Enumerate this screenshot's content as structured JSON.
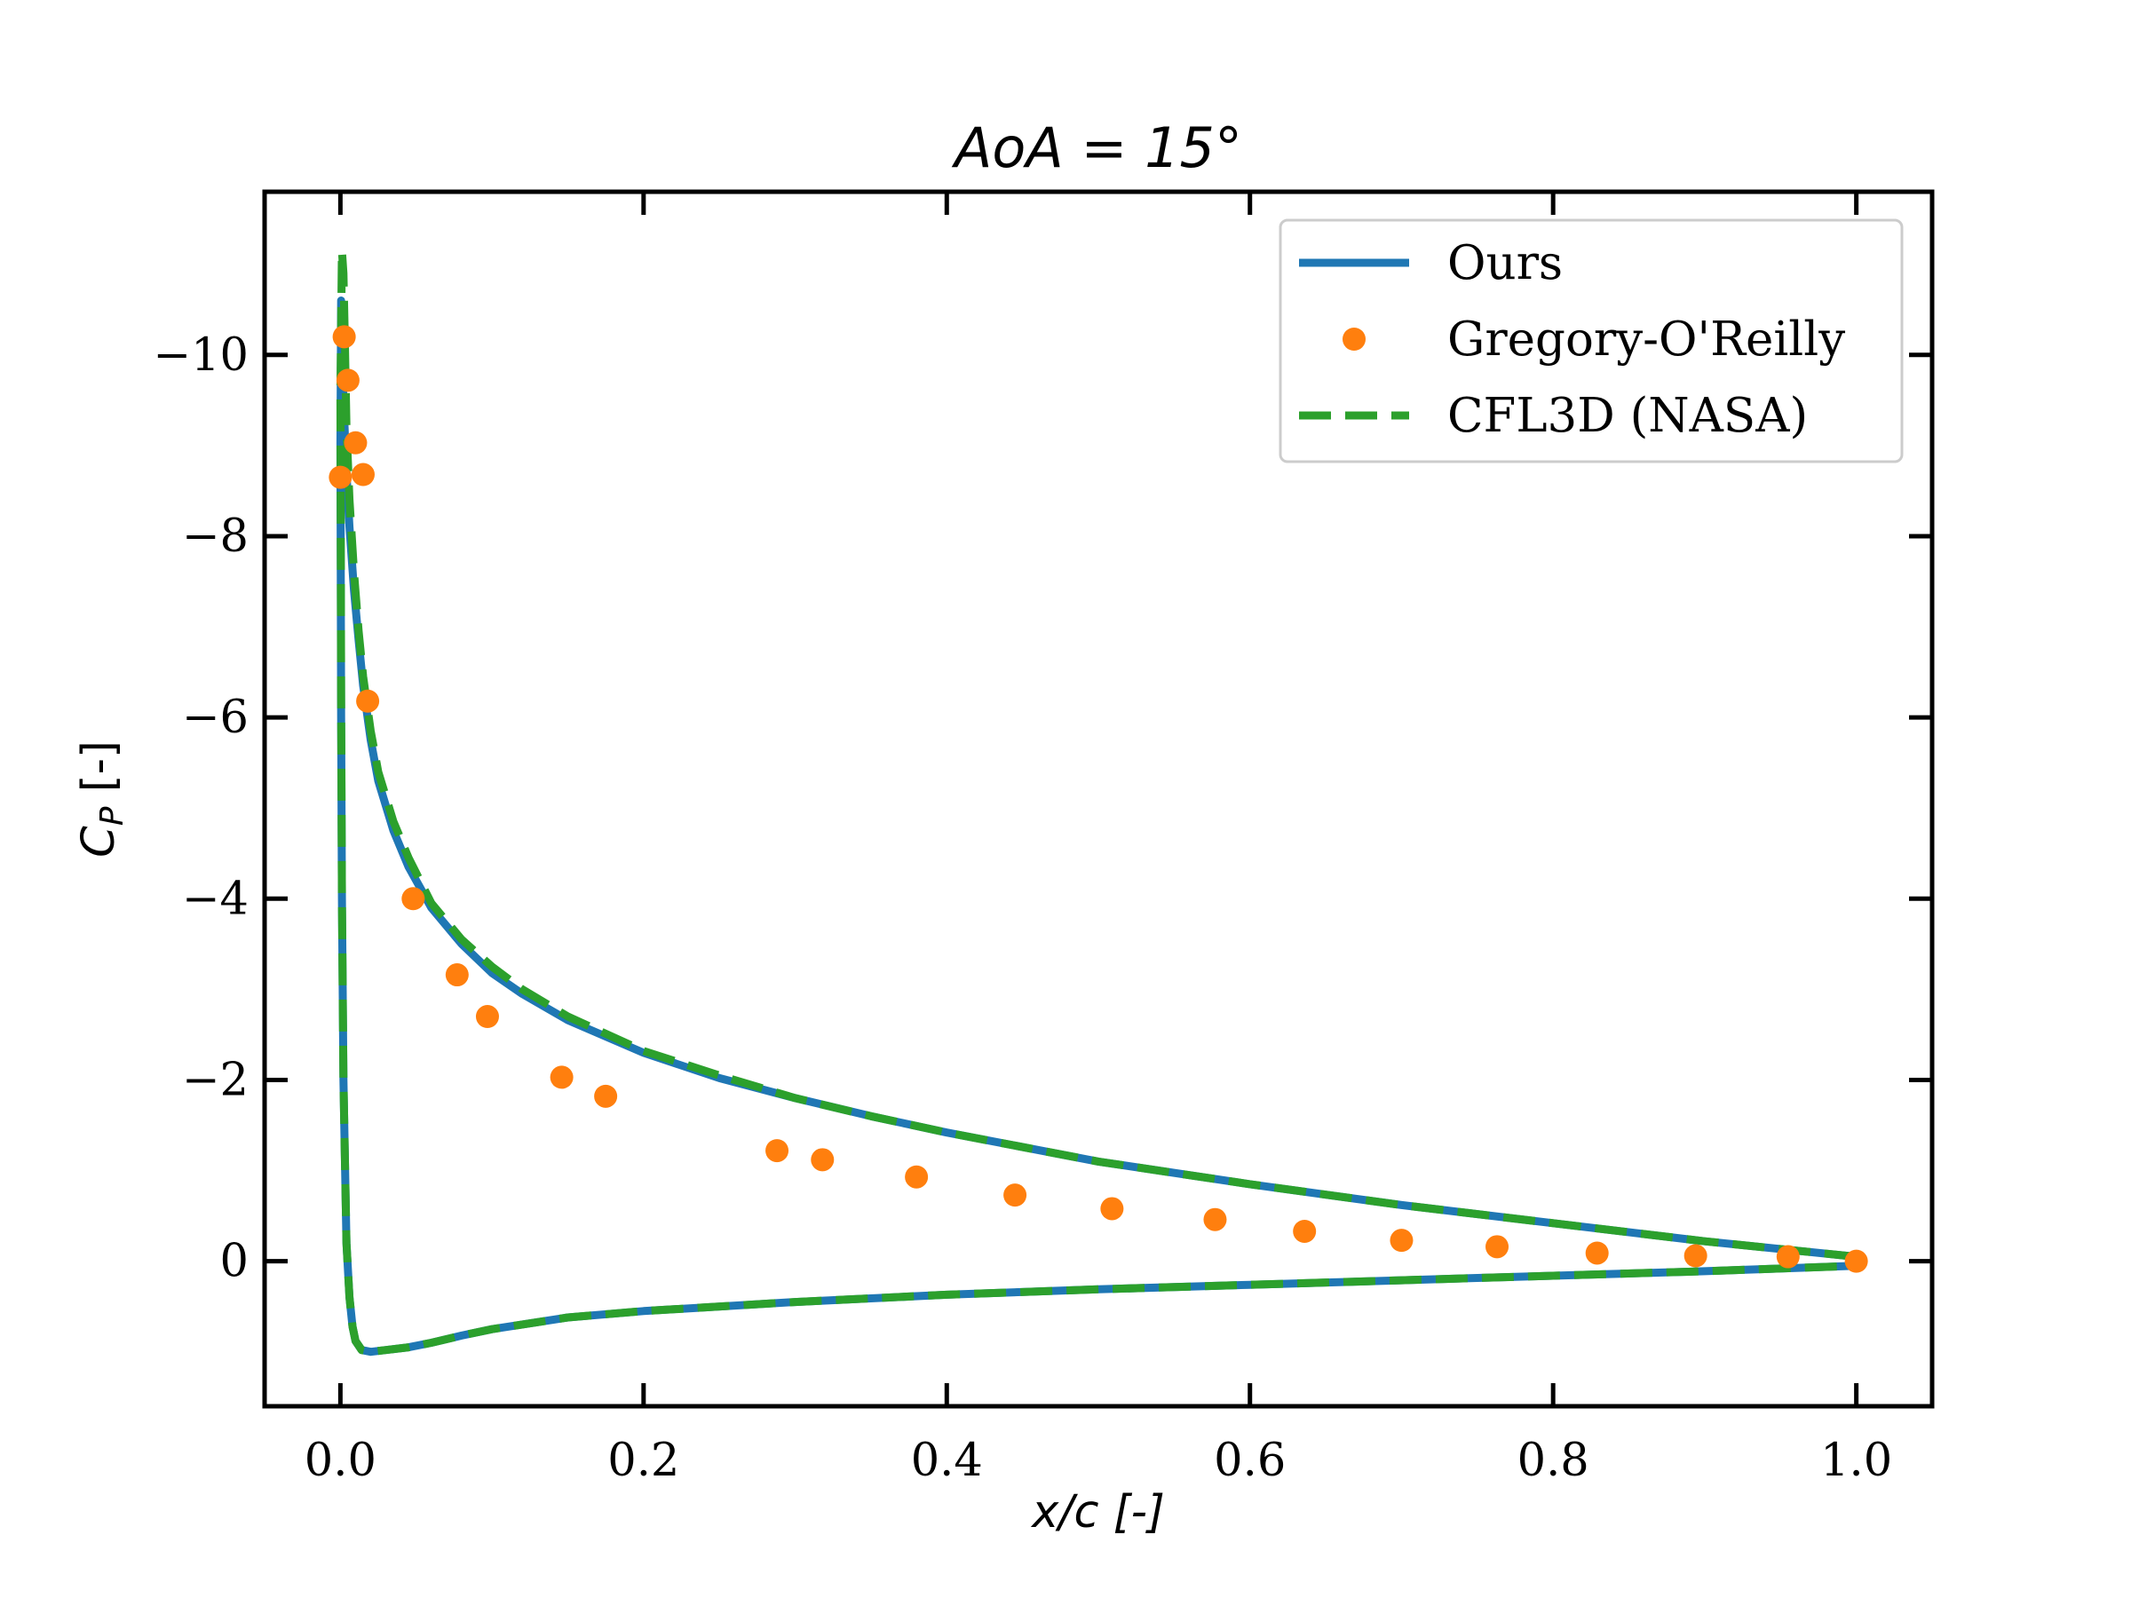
{
  "chart_data": {
    "type": "line",
    "title_base": "AoA = 15",
    "title_suffix": "°",
    "xlabel": "x/c [-]",
    "ylabel_main": "C",
    "ylabel_sub": "P",
    "ylabel_unit": " [-]",
    "xlim": [
      -0.05,
      1.05
    ],
    "ylim": [
      1.6,
      -11.8
    ],
    "y_inverted": true,
    "grid": false,
    "legend_position": "top-right",
    "xticks": [
      0.0,
      0.2,
      0.4,
      0.6,
      0.8,
      1.0
    ],
    "xtick_labels": [
      "0.0",
      "0.2",
      "0.4",
      "0.6",
      "0.8",
      "1.0"
    ],
    "yticks": [
      -10,
      -8,
      -6,
      -4,
      -2,
      0
    ],
    "ytick_labels": [
      "−10",
      "−8",
      "−6",
      "−4",
      "−2",
      "0"
    ],
    "colors": {
      "ours": "#1f77b4",
      "gregory": "#ff7f0e",
      "cfl3d": "#2ca02c"
    },
    "series": [
      {
        "name": "Ours",
        "style": "solid",
        "x": [
          1.0,
          0.9,
          0.8,
          0.7,
          0.6,
          0.5,
          0.4,
          0.35,
          0.3,
          0.25,
          0.2,
          0.15,
          0.12,
          0.1,
          0.08,
          0.06,
          0.045,
          0.035,
          0.025,
          0.02,
          0.015,
          0.012,
          0.009,
          0.006,
          0.004,
          0.002,
          0.001,
          0.0005,
          0.0,
          0.0005,
          0.001,
          0.002,
          0.004,
          0.006,
          0.008,
          0.01,
          0.014,
          0.02,
          0.03,
          0.045,
          0.06,
          0.08,
          0.1,
          0.15,
          0.2,
          0.3,
          0.4,
          0.5,
          0.6,
          0.7,
          0.8,
          0.9,
          1.0
        ],
        "y": [
          -0.05,
          -0.22,
          -0.42,
          -0.62,
          -0.85,
          -1.1,
          -1.42,
          -1.6,
          -1.8,
          -2.02,
          -2.3,
          -2.66,
          -2.95,
          -3.18,
          -3.5,
          -3.9,
          -4.35,
          -4.75,
          -5.3,
          -5.75,
          -6.35,
          -6.85,
          -7.4,
          -8.1,
          -8.7,
          -9.5,
          -10.2,
          -10.6,
          -9.0,
          -6.0,
          -4.0,
          -2.0,
          -0.2,
          0.4,
          0.72,
          0.88,
          0.98,
          1.0,
          0.98,
          0.95,
          0.9,
          0.82,
          0.75,
          0.62,
          0.55,
          0.45,
          0.37,
          0.31,
          0.26,
          0.21,
          0.16,
          0.11,
          0.05
        ]
      },
      {
        "name": "Gregory-O'Reilly",
        "style": "markers",
        "x": [
          0.0,
          0.0025,
          0.005,
          0.01,
          0.015,
          0.018,
          0.048,
          0.077,
          0.097,
          0.146,
          0.175,
          0.288,
          0.318,
          0.38,
          0.445,
          0.509,
          0.577,
          0.636,
          0.7,
          0.763,
          0.829,
          0.894,
          0.955,
          1.0
        ],
        "y": [
          -8.65,
          -10.2,
          -9.72,
          -9.03,
          -8.68,
          -6.18,
          -4.0,
          -3.16,
          -2.7,
          -2.03,
          -1.82,
          -1.22,
          -1.12,
          -0.93,
          -0.73,
          -0.58,
          -0.46,
          -0.33,
          -0.23,
          -0.16,
          -0.09,
          -0.06,
          -0.05,
          0.0
        ]
      },
      {
        "name": "CFL3D (NASA)",
        "style": "dashed",
        "x": [
          1.0,
          0.9,
          0.8,
          0.7,
          0.6,
          0.5,
          0.4,
          0.35,
          0.3,
          0.25,
          0.2,
          0.15,
          0.12,
          0.1,
          0.08,
          0.06,
          0.045,
          0.035,
          0.025,
          0.02,
          0.015,
          0.012,
          0.009,
          0.006,
          0.004,
          0.003,
          0.002,
          0.001,
          0.0,
          0.0005,
          0.001,
          0.002,
          0.004,
          0.006,
          0.008,
          0.01,
          0.014,
          0.02,
          0.03,
          0.045,
          0.06,
          0.08,
          0.1,
          0.15,
          0.2,
          0.3,
          0.4,
          0.5,
          0.6,
          0.7,
          0.8,
          0.9,
          1.0
        ],
        "y": [
          -0.05,
          -0.22,
          -0.42,
          -0.62,
          -0.85,
          -1.1,
          -1.42,
          -1.6,
          -1.8,
          -2.05,
          -2.32,
          -2.7,
          -3.0,
          -3.25,
          -3.55,
          -3.95,
          -4.45,
          -4.85,
          -5.4,
          -5.85,
          -6.45,
          -6.95,
          -7.6,
          -8.4,
          -9.2,
          -10.1,
          -10.9,
          -11.15,
          -9.6,
          -6.2,
          -4.0,
          -2.0,
          -0.2,
          0.4,
          0.72,
          0.88,
          0.98,
          1.0,
          0.98,
          0.95,
          0.9,
          0.82,
          0.75,
          0.62,
          0.55,
          0.45,
          0.37,
          0.31,
          0.26,
          0.21,
          0.16,
          0.11,
          0.05
        ]
      }
    ]
  }
}
